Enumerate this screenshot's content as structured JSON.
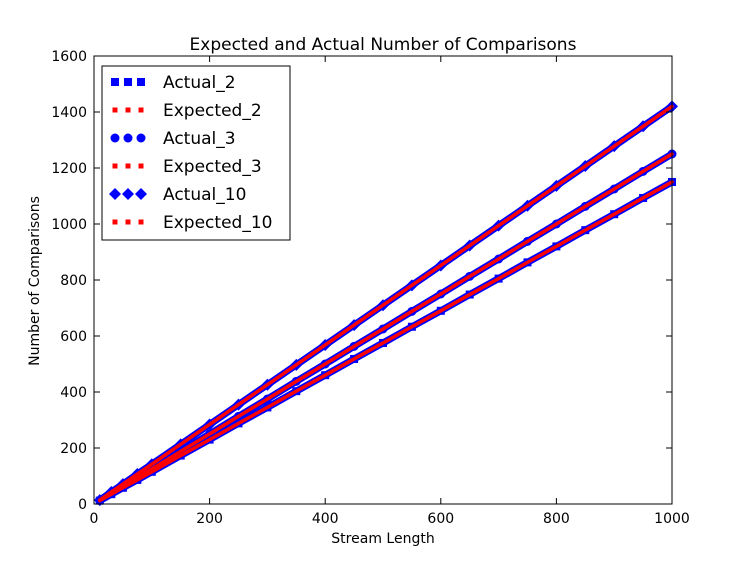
{
  "chart_data": {
    "type": "scatter",
    "title": "Expected and Actual Number of Comparisons",
    "xlabel": "Stream Length",
    "ylabel": "Number of Comparisons",
    "xlim": [
      0,
      1000
    ],
    "ylim": [
      0,
      1600
    ],
    "x_ticks": [
      "0",
      "200",
      "400",
      "600",
      "800",
      "1000"
    ],
    "y_ticks": [
      "0",
      "200",
      "400",
      "600",
      "800",
      "1000",
      "1200",
      "1400",
      "1600"
    ],
    "grid": false,
    "legend_position": "top-left",
    "colors": {
      "actual": "#0000ff",
      "expected": "#ff0000"
    },
    "x": [
      10,
      30,
      50,
      75,
      100,
      150,
      200,
      250,
      300,
      350,
      400,
      450,
      500,
      550,
      600,
      650,
      700,
      750,
      800,
      850,
      900,
      950,
      1000
    ],
    "series": [
      {
        "name": "Actual_2",
        "marker": "square",
        "color": "#0000ff",
        "values": [
          12,
          35,
          58,
          86,
          115,
          173,
          230,
          288,
          345,
          403,
          460,
          518,
          575,
          633,
          690,
          748,
          805,
          863,
          920,
          978,
          1035,
          1093,
          1150
        ]
      },
      {
        "name": "Expected_2",
        "marker": "dotted",
        "color": "#ff0000",
        "values": [
          12,
          35,
          58,
          86,
          115,
          173,
          230,
          288,
          345,
          403,
          460,
          518,
          575,
          633,
          690,
          748,
          805,
          863,
          920,
          978,
          1035,
          1093,
          1150
        ]
      },
      {
        "name": "Actual_3",
        "marker": "circle",
        "color": "#0000ff",
        "values": [
          13,
          38,
          63,
          94,
          125,
          188,
          250,
          313,
          375,
          438,
          500,
          563,
          625,
          688,
          750,
          813,
          875,
          938,
          1000,
          1063,
          1125,
          1188,
          1250
        ]
      },
      {
        "name": "Expected_3",
        "marker": "dotted",
        "color": "#ff0000",
        "values": [
          13,
          38,
          63,
          94,
          125,
          188,
          250,
          313,
          375,
          438,
          500,
          563,
          625,
          688,
          750,
          813,
          875,
          938,
          1000,
          1063,
          1125,
          1188,
          1250
        ]
      },
      {
        "name": "Actual_10",
        "marker": "diamond",
        "color": "#0000ff",
        "values": [
          14,
          43,
          71,
          107,
          142,
          213,
          284,
          355,
          426,
          497,
          568,
          639,
          710,
          781,
          852,
          923,
          994,
          1065,
          1136,
          1207,
          1278,
          1349,
          1420
        ]
      },
      {
        "name": "Expected_10",
        "marker": "dotted",
        "color": "#ff0000",
        "values": [
          14,
          43,
          71,
          107,
          142,
          213,
          284,
          355,
          426,
          497,
          568,
          639,
          710,
          781,
          852,
          923,
          994,
          1065,
          1136,
          1207,
          1278,
          1349,
          1420
        ]
      }
    ]
  }
}
